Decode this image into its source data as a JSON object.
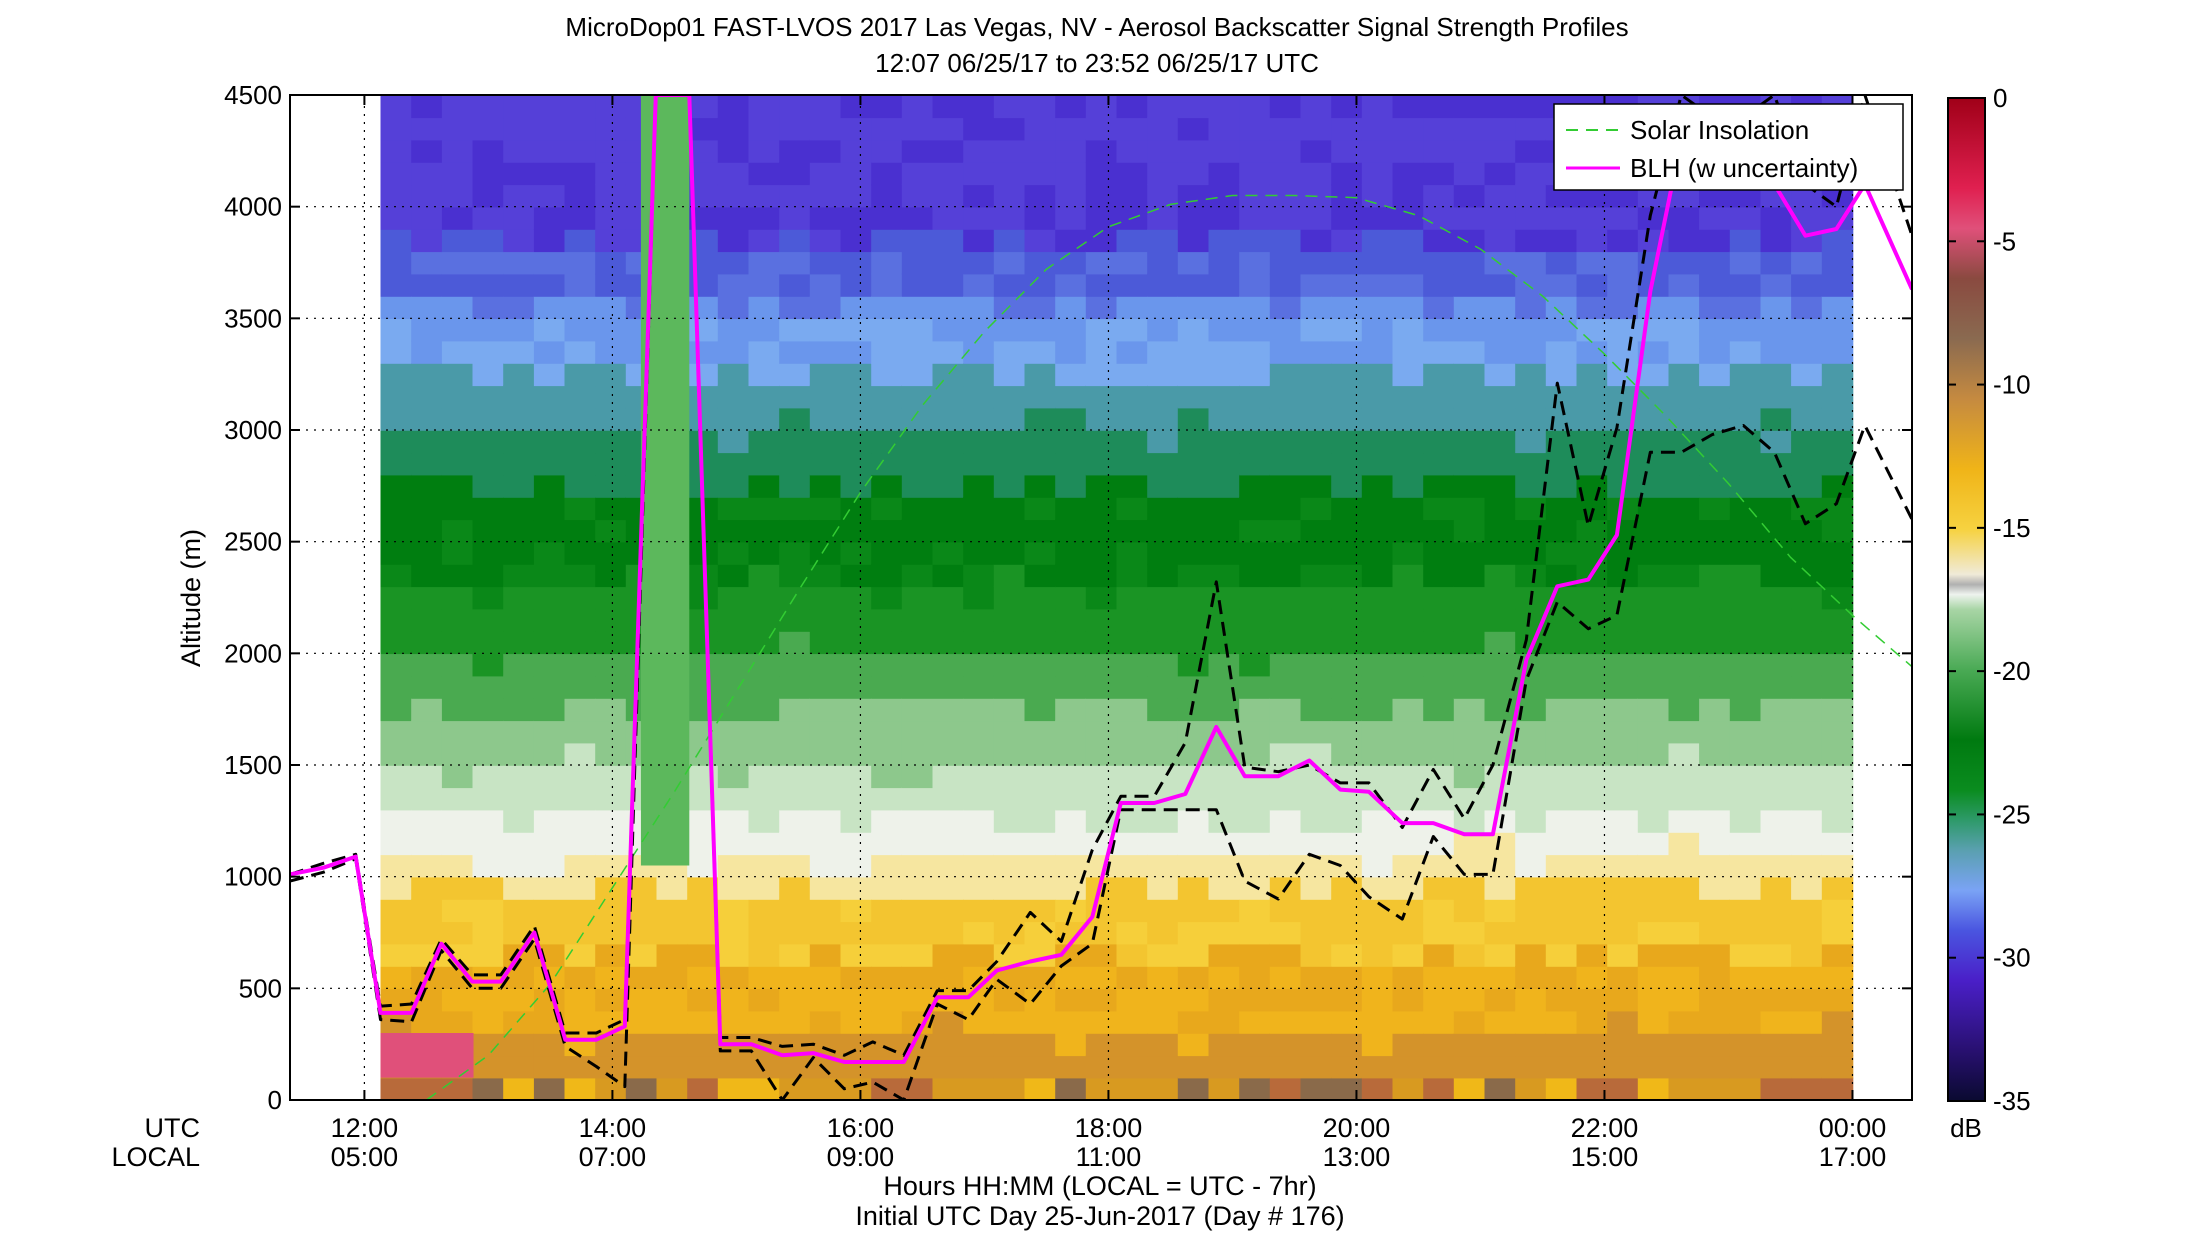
{
  "chart_data": {
    "type": "heatmap",
    "title": "MicroDop01 FAST-LVOS 2017 Las Vegas, NV - Aerosol Backscatter Signal Strength Profiles",
    "subtitle": "12:07 06/25/17 to 23:52 06/25/17  UTC",
    "ylabel": "Altitude (m)",
    "xlabel": "Hours HH:MM  (LOCAL = UTC - 7hr)",
    "xlabel2": "Initial UTC Day 25-Jun-2017 (Day # 176)",
    "xlim_hours": [
      11.4,
      24.48
    ],
    "ylim": [
      0,
      4500
    ],
    "grid": true,
    "row_labels": [
      "UTC",
      "LOCAL"
    ],
    "x_ticks": [
      {
        "hour": 12,
        "utc": "12:00",
        "local": "05:00"
      },
      {
        "hour": 14,
        "utc": "14:00",
        "local": "07:00"
      },
      {
        "hour": 16,
        "utc": "16:00",
        "local": "09:00"
      },
      {
        "hour": 18,
        "utc": "18:00",
        "local": "11:00"
      },
      {
        "hour": 20,
        "utc": "20:00",
        "local": "13:00"
      },
      {
        "hour": 22,
        "utc": "22:00",
        "local": "15:00"
      },
      {
        "hour": 24,
        "utc": "00:00",
        "local": "17:00"
      }
    ],
    "y_ticks": [
      0,
      500,
      1000,
      1500,
      2000,
      2500,
      3000,
      3500,
      4000,
      4500
    ],
    "colorbar": {
      "unit": "dB",
      "range": [
        -35,
        0
      ],
      "ticks": [
        0,
        -5,
        -10,
        -15,
        -20,
        -25,
        -30,
        -35
      ]
    },
    "legend": {
      "placement": "top-right",
      "entries": [
        "Solar Insolation",
        "BLH (w uncertainty)"
      ]
    },
    "data_coverage_hours": [
      12.13,
      24.0
    ],
    "series": [
      {
        "name": "BLH (w uncertainty)",
        "color": "#ff00ff",
        "x": [
          11.4,
          11.67,
          11.93,
          12.13,
          12.38,
          12.62,
          12.87,
          13.1,
          13.37,
          13.62,
          13.87,
          14.1,
          14.35,
          14.62,
          14.87,
          15.12,
          15.37,
          15.62,
          15.87,
          16.1,
          16.35,
          16.62,
          16.87,
          17.1,
          17.37,
          17.62,
          17.87,
          18.1,
          18.37,
          18.62,
          18.87,
          19.1,
          19.37,
          19.62,
          19.87,
          20.1,
          20.37,
          20.62,
          20.87,
          21.1,
          21.37,
          21.62,
          21.87,
          22.1,
          22.37,
          22.62,
          22.87,
          23.12,
          23.37,
          23.62,
          23.87,
          24.1,
          24.48
        ],
        "y": [
          1010,
          1040,
          1090,
          390,
          390,
          700,
          530,
          530,
          750,
          270,
          270,
          330,
          4500,
          4500,
          250,
          250,
          200,
          210,
          170,
          170,
          170,
          460,
          460,
          580,
          620,
          650,
          820,
          1330,
          1330,
          1370,
          1670,
          1450,
          1450,
          1520,
          1390,
          1380,
          1240,
          1240,
          1190,
          1190,
          1970,
          2300,
          2330,
          2530,
          3620,
          4300,
          4100,
          4100,
          4100,
          3870,
          3900,
          4100,
          3630
        ]
      },
      {
        "name": "",
        "color": "#000000",
        "x": [
          11.4,
          11.67,
          11.93,
          12.13,
          12.38,
          12.62,
          12.87,
          13.1,
          13.37,
          13.62,
          13.87,
          14.1,
          14.35,
          14.62,
          14.87,
          15.12,
          15.37,
          15.62,
          15.87,
          16.1,
          16.35,
          16.62,
          16.87,
          17.1,
          17.37,
          17.62,
          17.87,
          18.1,
          18.37,
          18.62,
          18.87,
          19.1,
          19.37,
          19.62,
          19.87,
          20.1,
          20.37,
          20.62,
          20.87,
          21.1,
          21.37,
          21.62,
          21.87,
          22.1,
          22.37,
          22.62,
          22.87,
          23.12,
          23.37,
          23.62,
          23.87,
          24.1,
          24.48
        ],
        "y": [
          1010,
          1060,
          1100,
          420,
          430,
          720,
          560,
          560,
          780,
          300,
          300,
          360,
          4500,
          4500,
          280,
          280,
          240,
          250,
          200,
          260,
          200,
          490,
          490,
          620,
          840,
          710,
          1120,
          1360,
          1360,
          1600,
          2320,
          1490,
          1470,
          1500,
          1420,
          1420,
          1220,
          1480,
          1260,
          1500,
          2060,
          3210,
          2570,
          3010,
          3960,
          4500,
          4400,
          4400,
          4500,
          4100,
          4000,
          4500,
          3870
        ]
      },
      {
        "name": "",
        "color": "#000000",
        "x": [
          11.4,
          11.67,
          11.93,
          12.13,
          12.38,
          12.62,
          12.87,
          13.1,
          13.37,
          13.62,
          13.87,
          14.1,
          14.35,
          14.62,
          14.87,
          15.12,
          15.37,
          15.62,
          15.87,
          16.1,
          16.35,
          16.62,
          16.87,
          17.1,
          17.37,
          17.62,
          17.87,
          18.1,
          18.37,
          18.62,
          18.87,
          19.1,
          19.37,
          19.62,
          19.87,
          20.1,
          20.37,
          20.62,
          20.87,
          21.1,
          21.37,
          21.62,
          21.87,
          22.1,
          22.37,
          22.62,
          22.87,
          23.12,
          23.37,
          23.62,
          23.87,
          24.1,
          24.48
        ],
        "y": [
          980,
          1020,
          1080,
          360,
          350,
          670,
          500,
          500,
          720,
          240,
          150,
          60,
          4500,
          4500,
          220,
          220,
          0,
          190,
          50,
          80,
          0,
          430,
          360,
          540,
          430,
          600,
          700,
          1300,
          1300,
          1300,
          1300,
          980,
          900,
          1100,
          1050,
          910,
          810,
          1180,
          1010,
          1010,
          1880,
          2230,
          2110,
          2170,
          2900,
          2900,
          2980,
          3020,
          2900,
          2580,
          2670,
          3020,
          2600
        ]
      },
      {
        "name": "Solar Insolation",
        "color": "#33cc33",
        "x": [
          12.5,
          13.0,
          13.5,
          14.0,
          14.5,
          15.0,
          15.5,
          16.0,
          16.5,
          17.0,
          17.5,
          18.0,
          18.5,
          19.0,
          19.5,
          20.0,
          20.5,
          21.0,
          21.5,
          22.0,
          22.5,
          23.0,
          23.5,
          24.0,
          24.48
        ],
        "y": [
          0,
          200,
          520,
          950,
          1380,
          1830,
          2280,
          2720,
          3110,
          3440,
          3720,
          3910,
          4010,
          4050,
          4050,
          4040,
          3960,
          3810,
          3600,
          3340,
          3060,
          2760,
          2430,
          2170,
          1940
        ]
      }
    ]
  }
}
